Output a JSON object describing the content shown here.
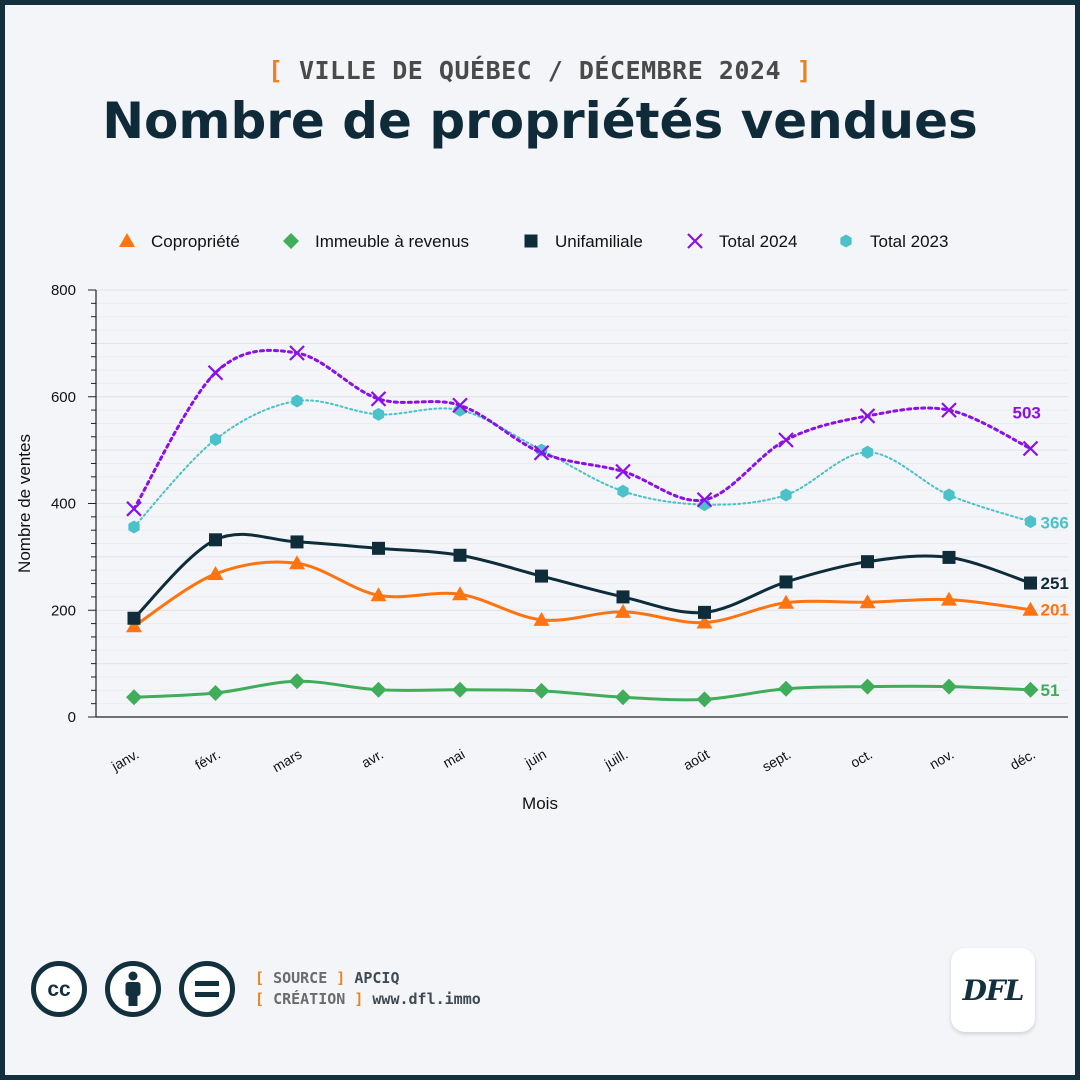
{
  "header": {
    "bracket_open": "[",
    "subtitle": "VILLE DE QUÉBEC / DÉCEMBRE 2024",
    "bracket_close": "]",
    "title": "Nombre de propriétés vendues"
  },
  "chart_data": {
    "type": "line",
    "xlabel": "Mois",
    "ylabel": "Nombre de ventes",
    "ylim": [
      0,
      800
    ],
    "yticks": [
      0,
      200,
      400,
      600,
      800
    ],
    "legend_position": "top",
    "categories": [
      "janv.",
      "févr.",
      "mars",
      "avr.",
      "mai",
      "juin",
      "juill.",
      "août",
      "sept.",
      "oct.",
      "nov.",
      "déc."
    ],
    "series": [
      {
        "name": "Copropriété",
        "color": "#ff7410",
        "marker": "triangle",
        "line": "solid",
        "values": [
          170,
          268,
          288,
          228,
          230,
          182,
          197,
          177,
          214,
          215,
          220,
          201
        ],
        "end_label": "201"
      },
      {
        "name": "Immeuble à revenus",
        "color": "#40ad5a",
        "marker": "diamond",
        "line": "solid",
        "values": [
          37,
          45,
          67,
          51,
          51,
          49,
          37,
          33,
          53,
          57,
          57,
          51
        ],
        "end_label": "51"
      },
      {
        "name": "Unifamiliale",
        "color": "#0e2c3a",
        "marker": "square",
        "line": "solid",
        "values": [
          185,
          332,
          328,
          316,
          303,
          264,
          225,
          196,
          253,
          291,
          299,
          251
        ],
        "end_label": "251"
      },
      {
        "name": "Total 2024",
        "color": "#8b0fe8",
        "marker": "cross",
        "line": "dotted",
        "values": [
          390,
          645,
          682,
          596,
          584,
          495,
          460,
          407,
          519,
          564,
          575,
          503
        ],
        "end_label": "503"
      },
      {
        "name": "Total 2023",
        "color": "#4bc1c9",
        "marker": "hexagon",
        "line": "dotted",
        "values": [
          356,
          520,
          592,
          567,
          575,
          500,
          423,
          398,
          416,
          496,
          416,
          366
        ],
        "end_label": "366"
      }
    ]
  },
  "footer": {
    "license_icons": [
      "cc-icon",
      "by-person-icon",
      "nd-equals-icon"
    ],
    "source_label": "SOURCE",
    "source_value": "APCIQ",
    "creation_label": "CRÉATION",
    "creation_value": "www.dfl.immo",
    "logo_text": "DFL"
  }
}
